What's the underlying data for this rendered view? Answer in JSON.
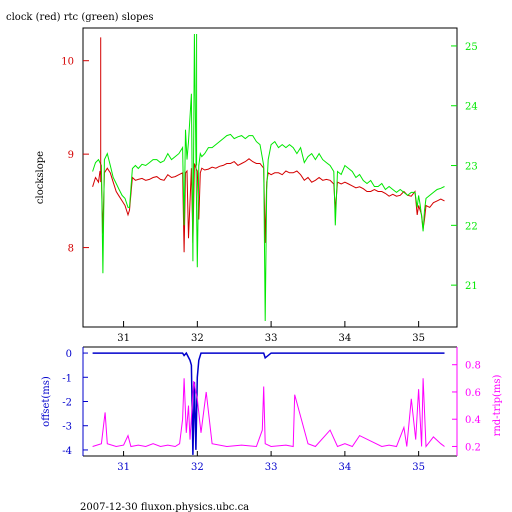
{
  "title": "clock (red) rtc (green) slopes",
  "footer": "2007-12-30 fluxon.physics.ubc.ca",
  "chart_data": [
    {
      "type": "line",
      "title": "clock (red) rtc (green) slopes",
      "xlabel": "",
      "ylabel": "clockslope",
      "xlim": [
        30.45,
        35.52
      ],
      "ylim_left": [
        7.15,
        10.35
      ],
      "ylim_right": [
        20.3,
        25.3
      ],
      "x_ticks": [
        31,
        32,
        33,
        34,
        35
      ],
      "y_ticks_left": [
        8,
        9,
        10
      ],
      "y_ticks_right": [
        21,
        22,
        23,
        24,
        25
      ],
      "grid": false,
      "colors": {
        "clock": "#d40000",
        "rtc": "#00e800",
        "axis_left": "#d40000",
        "axis_right": "#00e800"
      },
      "series": [
        {
          "name": "clock",
          "axis": "left",
          "x": [
            30.58,
            30.62,
            30.66,
            30.68,
            30.7,
            30.72,
            30.74,
            30.78,
            30.82,
            30.86,
            30.9,
            30.94,
            30.98,
            31.02,
            31.06,
            31.08,
            31.12,
            31.16,
            31.2,
            31.25,
            31.3,
            31.35,
            31.4,
            31.45,
            31.5,
            31.55,
            31.6,
            31.65,
            31.7,
            31.75,
            31.8,
            31.82,
            31.84,
            31.86,
            31.88,
            31.92,
            31.94,
            31.96,
            31.98,
            32.0,
            32.02,
            32.04,
            32.06,
            32.1,
            32.15,
            32.2,
            32.25,
            32.3,
            32.35,
            32.4,
            32.45,
            32.5,
            32.55,
            32.6,
            32.65,
            32.7,
            32.75,
            32.8,
            32.85,
            32.9,
            32.92,
            32.94,
            32.96,
            33.0,
            33.05,
            33.1,
            33.15,
            33.2,
            33.25,
            33.3,
            33.35,
            33.4,
            33.45,
            33.5,
            33.55,
            33.6,
            33.65,
            33.7,
            33.75,
            33.8,
            33.85,
            33.87,
            33.9,
            33.95,
            34.0,
            34.05,
            34.1,
            34.15,
            34.2,
            34.25,
            34.3,
            34.35,
            34.4,
            34.45,
            34.5,
            34.55,
            34.6,
            34.65,
            34.7,
            34.75,
            34.8,
            34.85,
            34.9,
            34.95,
            34.98,
            35.0,
            35.02,
            35.04,
            35.06,
            35.08,
            35.1,
            35.15,
            35.2,
            35.25,
            35.3,
            35.35
          ],
          "values": [
            8.65,
            8.75,
            8.7,
            8.82,
            8.75,
            8.15,
            8.8,
            8.85,
            8.8,
            8.7,
            8.6,
            8.55,
            8.5,
            8.45,
            8.35,
            8.4,
            8.75,
            8.72,
            8.73,
            8.74,
            8.72,
            8.73,
            8.75,
            8.76,
            8.73,
            8.72,
            8.78,
            8.75,
            8.76,
            8.78,
            8.8,
            7.95,
            8.8,
            8.82,
            8.1,
            8.85,
            8.05,
            8.9,
            8.85,
            8.82,
            8.3,
            8.8,
            8.85,
            8.83,
            8.84,
            8.86,
            8.85,
            8.87,
            8.88,
            8.9,
            8.9,
            8.92,
            8.88,
            8.9,
            8.92,
            8.95,
            8.92,
            8.9,
            8.9,
            8.85,
            8.05,
            8.7,
            8.8,
            8.78,
            8.8,
            8.8,
            8.78,
            8.82,
            8.8,
            8.8,
            8.82,
            8.78,
            8.72,
            8.75,
            8.7,
            8.72,
            8.75,
            8.72,
            8.73,
            8.72,
            8.68,
            8.4,
            8.7,
            8.68,
            8.7,
            8.68,
            8.66,
            8.64,
            8.65,
            8.63,
            8.6,
            8.6,
            8.62,
            8.6,
            8.6,
            8.58,
            8.55,
            8.57,
            8.55,
            8.56,
            8.6,
            8.56,
            8.55,
            8.6,
            8.35,
            8.45,
            8.4,
            8.35,
            8.2,
            8.3,
            8.45,
            8.43,
            8.48,
            8.5,
            8.52,
            8.5
          ]
        },
        {
          "name": "rtc",
          "axis": "right",
          "x": [
            30.58,
            30.62,
            30.66,
            30.7,
            30.72,
            30.74,
            30.78,
            30.82,
            30.86,
            30.9,
            30.94,
            30.98,
            31.02,
            31.06,
            31.08,
            31.12,
            31.16,
            31.2,
            31.25,
            31.3,
            31.35,
            31.4,
            31.45,
            31.5,
            31.55,
            31.6,
            31.65,
            31.7,
            31.75,
            31.8,
            31.82,
            31.84,
            31.86,
            31.88,
            31.92,
            31.94,
            31.96,
            31.98,
            32.0,
            32.02,
            32.04,
            32.06,
            32.1,
            32.15,
            32.2,
            32.25,
            32.3,
            32.35,
            32.4,
            32.45,
            32.5,
            32.55,
            32.6,
            32.65,
            32.7,
            32.75,
            32.8,
            32.85,
            32.9,
            32.92,
            32.94,
            32.96,
            33.0,
            33.05,
            33.1,
            33.15,
            33.2,
            33.25,
            33.3,
            33.35,
            33.4,
            33.45,
            33.5,
            33.55,
            33.6,
            33.65,
            33.7,
            33.75,
            33.8,
            33.85,
            33.87,
            33.9,
            33.95,
            34.0,
            34.05,
            34.1,
            34.15,
            34.2,
            34.25,
            34.3,
            34.35,
            34.4,
            34.45,
            34.5,
            34.55,
            34.6,
            34.65,
            34.7,
            34.75,
            34.8,
            34.85,
            34.9,
            34.95,
            34.98,
            35.0,
            35.02,
            35.04,
            35.06,
            35.08,
            35.1,
            35.15,
            35.2,
            35.25,
            35.3,
            35.35
          ],
          "values": [
            22.9,
            23.05,
            23.1,
            23.0,
            21.2,
            23.1,
            23.2,
            23.0,
            22.8,
            22.7,
            22.6,
            22.5,
            22.45,
            22.3,
            22.3,
            22.95,
            23.0,
            22.95,
            23.02,
            23.0,
            23.05,
            23.1,
            23.1,
            23.05,
            23.08,
            23.2,
            23.1,
            23.15,
            23.2,
            23.3,
            22.0,
            23.6,
            23.1,
            23.4,
            24.2,
            21.4,
            25.2,
            23.2,
            21.3,
            23.0,
            23.2,
            23.15,
            23.2,
            23.3,
            23.3,
            23.35,
            23.4,
            23.45,
            23.5,
            23.52,
            23.45,
            23.48,
            23.5,
            23.45,
            23.5,
            23.5,
            23.4,
            23.35,
            23.0,
            20.4,
            22.6,
            23.1,
            23.35,
            23.4,
            23.3,
            23.35,
            23.3,
            23.35,
            23.3,
            23.2,
            23.3,
            23.05,
            23.15,
            23.2,
            23.1,
            23.2,
            23.1,
            23.05,
            23.0,
            22.9,
            22.0,
            22.9,
            22.85,
            23.0,
            22.95,
            22.9,
            22.8,
            22.85,
            22.75,
            22.7,
            22.75,
            22.65,
            22.65,
            22.7,
            22.6,
            22.65,
            22.6,
            22.55,
            22.6,
            22.55,
            22.5,
            22.55,
            22.55,
            22.3,
            22.5,
            22.35,
            22.15,
            21.9,
            22.25,
            22.45,
            22.5,
            22.55,
            22.6,
            22.62,
            22.65
          ]
        }
      ],
      "spikes": [
        {
          "series": "clock",
          "x": 30.69,
          "value": 10.25
        },
        {
          "series": "rtc",
          "x": 31.99,
          "value": 25.2
        }
      ]
    },
    {
      "type": "line",
      "title": "",
      "xlabel": "",
      "ylabel": "offset(ms)",
      "ylabel_right": "rnd-trip(ms)",
      "xlim": [
        30.45,
        35.52
      ],
      "ylim_left": [
        -4.25,
        0.25
      ],
      "ylim_right": [
        0.13,
        0.93
      ],
      "x_ticks": [
        31,
        32,
        33,
        34,
        35
      ],
      "y_ticks_left": [
        0,
        -1,
        -2,
        -3,
        -4
      ],
      "y_ticks_right": [
        0.2,
        0.4,
        0.6,
        0.8
      ],
      "colors": {
        "offset": "#0000cc",
        "rndtrip": "#ff00ff"
      },
      "series": [
        {
          "name": "offset",
          "axis": "left",
          "x": [
            30.58,
            31.0,
            31.5,
            31.8,
            31.82,
            31.85,
            31.9,
            31.92,
            31.94,
            31.96,
            31.98,
            32.0,
            32.02,
            32.05,
            32.5,
            32.9,
            32.92,
            33.0,
            33.5,
            34.0,
            34.5,
            35.0,
            35.35
          ],
          "values": [
            0.0,
            0.0,
            0.0,
            0.0,
            -0.1,
            0.0,
            -0.3,
            -0.5,
            -4.2,
            -1.2,
            -4.0,
            -1.0,
            -0.3,
            0.0,
            0.0,
            0.0,
            -0.2,
            0.0,
            0.0,
            0.0,
            0.0,
            0.0,
            0.0
          ]
        },
        {
          "name": "rnd-trip",
          "axis": "right",
          "x": [
            30.58,
            30.7,
            30.75,
            30.78,
            30.9,
            31.0,
            31.06,
            31.1,
            31.2,
            31.3,
            31.4,
            31.5,
            31.6,
            31.7,
            31.76,
            31.8,
            31.82,
            31.85,
            31.88,
            31.9,
            31.95,
            32.0,
            32.05,
            32.12,
            32.2,
            32.4,
            32.6,
            32.8,
            32.88,
            32.9,
            32.92,
            33.0,
            33.2,
            33.3,
            33.32,
            33.5,
            33.6,
            33.8,
            33.9,
            34.0,
            34.1,
            34.2,
            34.5,
            34.6,
            34.7,
            34.8,
            34.84,
            34.9,
            34.96,
            35.0,
            35.04,
            35.06,
            35.1,
            35.2,
            35.3,
            35.35
          ],
          "values": [
            0.2,
            0.22,
            0.45,
            0.22,
            0.2,
            0.21,
            0.28,
            0.2,
            0.21,
            0.2,
            0.22,
            0.2,
            0.21,
            0.2,
            0.22,
            0.4,
            0.7,
            0.3,
            0.5,
            0.25,
            0.68,
            0.55,
            0.3,
            0.6,
            0.22,
            0.2,
            0.21,
            0.2,
            0.32,
            0.64,
            0.22,
            0.2,
            0.21,
            0.2,
            0.58,
            0.22,
            0.2,
            0.32,
            0.2,
            0.22,
            0.2,
            0.28,
            0.2,
            0.21,
            0.2,
            0.34,
            0.2,
            0.55,
            0.25,
            0.62,
            0.2,
            0.7,
            0.2,
            0.27,
            0.22,
            0.2
          ]
        }
      ]
    }
  ]
}
